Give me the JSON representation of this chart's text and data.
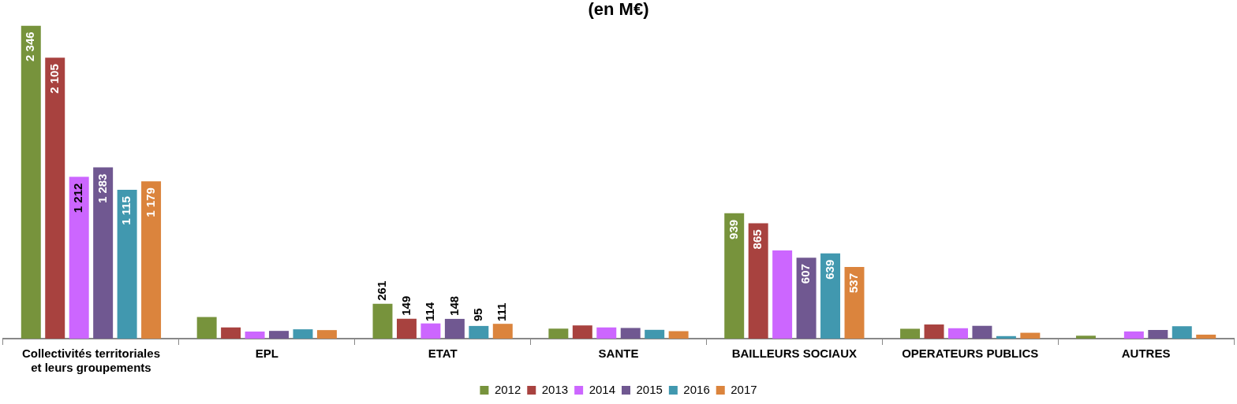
{
  "chart_data": {
    "type": "bar",
    "title": "(en M€)",
    "categories": [
      "Collectivités territoriales et leurs groupements",
      "EPL",
      "ETAT",
      "SANTE",
      "BAILLEURS SOCIAUX",
      "OPERATEURS PUBLICS",
      "AUTRES"
    ],
    "series": [
      {
        "name": "2012",
        "color": "#77933c",
        "values": [
          2346,
          162,
          261,
          75,
          939,
          74,
          22
        ],
        "value_labels": [
          "2 346",
          null,
          "261",
          null,
          "939",
          null,
          null
        ]
      },
      {
        "name": "2013",
        "color": "#a8423f",
        "values": [
          2105,
          84,
          149,
          99,
          865,
          106,
          null
        ],
        "value_labels": [
          "2 105",
          null,
          "149",
          null,
          "865",
          null,
          null
        ]
      },
      {
        "name": "2014",
        "color": "#cc66ff",
        "values": [
          1212,
          53,
          114,
          84,
          661,
          78,
          54
        ],
        "value_labels": [
          "1 212",
          null,
          "114",
          null,
          null,
          null,
          null
        ]
      },
      {
        "name": "2015",
        "color": "#705891",
        "values": [
          1283,
          58,
          148,
          80,
          607,
          96,
          65
        ],
        "value_labels": [
          "1 283",
          null,
          "148",
          null,
          "607",
          null,
          null
        ]
      },
      {
        "name": "2016",
        "color": "#4198af",
        "values": [
          1115,
          70,
          95,
          66,
          639,
          19,
          93
        ],
        "value_labels": [
          "1 115",
          null,
          "95",
          null,
          "639",
          null,
          null
        ]
      },
      {
        "name": "2017",
        "color": "#db843d",
        "values": [
          1179,
          64,
          111,
          56,
          537,
          44,
          30
        ],
        "value_labels": [
          "1 179",
          null,
          "111",
          null,
          "537",
          null,
          null
        ]
      }
    ],
    "ylim": [
      0,
      2346
    ],
    "grid": false,
    "legend": "bottom"
  }
}
